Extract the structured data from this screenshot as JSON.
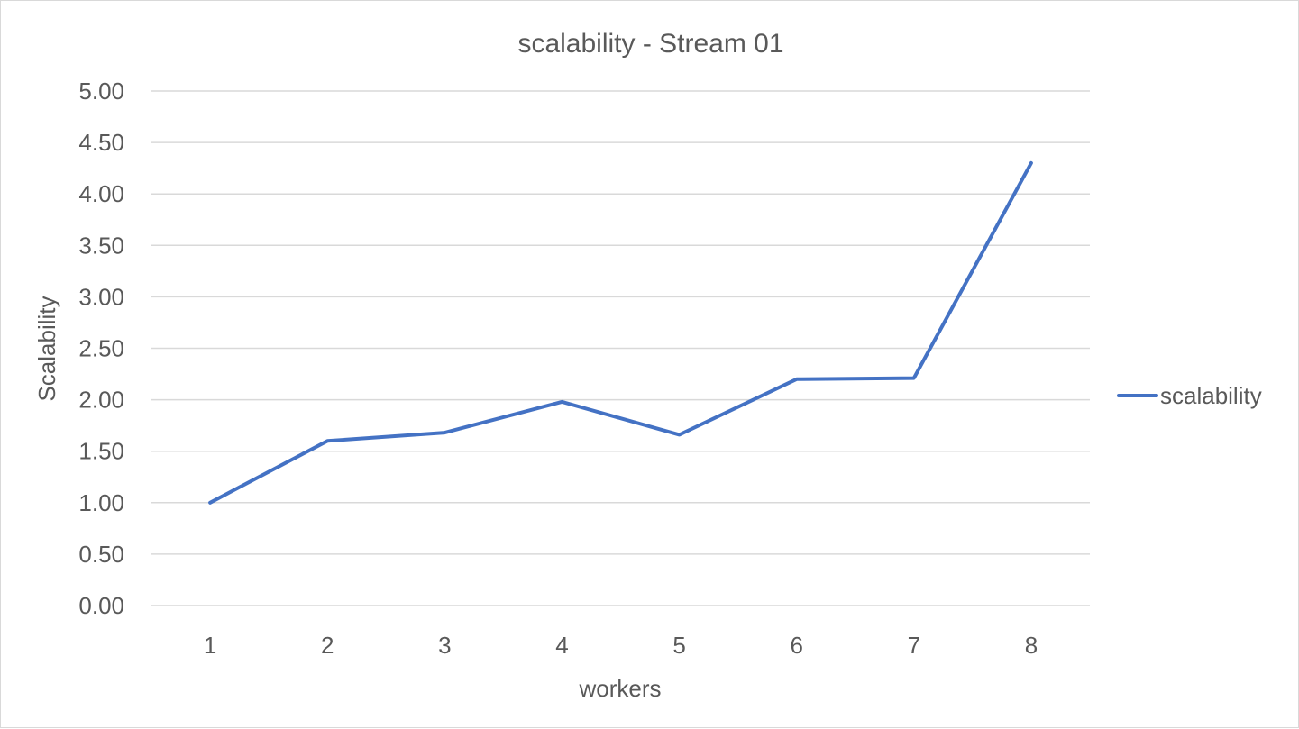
{
  "chart_data": {
    "type": "line",
    "title": "scalability - Stream 01",
    "xlabel": "workers",
    "ylabel": "Scalability",
    "categories": [
      "1",
      "2",
      "3",
      "4",
      "5",
      "6",
      "7",
      "8"
    ],
    "series": [
      {
        "name": "scalability",
        "color": "#4472c4",
        "values": [
          1.0,
          1.6,
          1.68,
          1.98,
          1.66,
          2.2,
          2.21,
          4.3
        ]
      }
    ],
    "ylim": [
      0,
      5
    ],
    "ytick_step": 0.5,
    "ytick_labels": [
      "0.00",
      "0.50",
      "1.00",
      "1.50",
      "2.00",
      "2.50",
      "3.00",
      "3.50",
      "4.00",
      "4.50",
      "5.00"
    ],
    "grid": true,
    "legend_position": "right"
  }
}
